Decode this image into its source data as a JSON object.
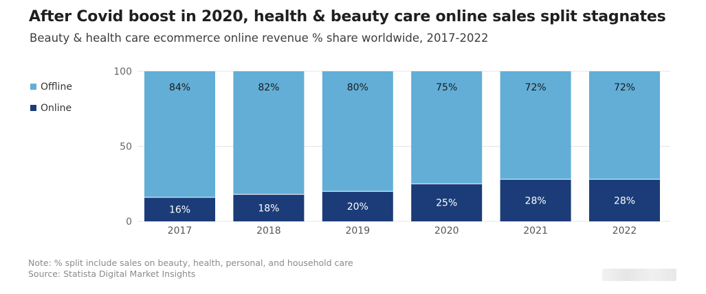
{
  "header": {
    "title": "After Covid boost in 2020, health & beauty care online sales split stagnates",
    "subtitle": "Beauty & health care ecommerce online revenue % share worldwide, 2017-2022"
  },
  "legend": {
    "items": [
      {
        "label": "Offline",
        "color": "#62aed7"
      },
      {
        "label": "Online",
        "color": "#1b3c78"
      }
    ]
  },
  "footer": {
    "note": "Note: % split include sales on beauty, health, personal, and household care",
    "source": "Source: Statista Digital Market Insights"
  },
  "chart_data": {
    "type": "bar",
    "stacked": true,
    "categories": [
      "2017",
      "2018",
      "2019",
      "2020",
      "2021",
      "2022"
    ],
    "series": [
      {
        "name": "Online",
        "values": [
          16,
          18,
          20,
          25,
          28,
          28
        ],
        "labels": [
          "16%",
          "18%",
          "20%",
          "25%",
          "28%",
          "28%"
        ],
        "color": "#1b3c78"
      },
      {
        "name": "Offline",
        "values": [
          84,
          82,
          80,
          75,
          72,
          72
        ],
        "labels": [
          "84%",
          "82%",
          "80%",
          "75%",
          "72%",
          "72%"
        ],
        "color": "#62aed7"
      }
    ],
    "yticks": [
      "0",
      "50",
      "100"
    ],
    "ylim": [
      0,
      100
    ],
    "grid": true,
    "legend_position": "left"
  }
}
